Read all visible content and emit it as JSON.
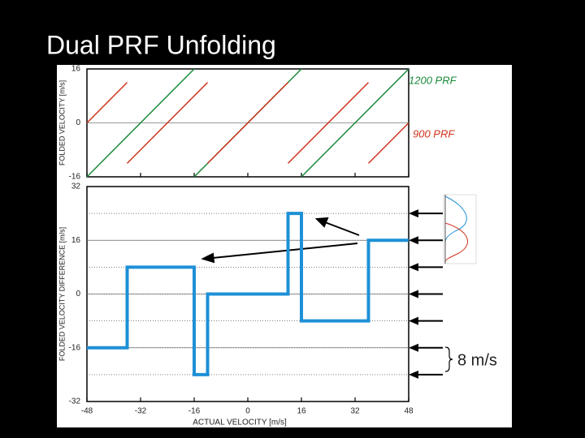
{
  "title": "Dual PRF Unfolding",
  "annotation": "8 m/s",
  "chart_data": [
    {
      "type": "line",
      "ylabel": "FOLDED VELOCITY [m/s]",
      "xlim": [
        -48,
        48
      ],
      "ylim": [
        -16,
        16
      ],
      "xticks": [
        -48,
        -32,
        -16,
        0,
        16,
        32,
        48
      ],
      "yticks": [
        -16,
        0,
        16
      ],
      "series": [
        {
          "name": "1200 PRF",
          "color": "#1a8a3a",
          "x": [
            -48,
            -16,
            -16,
            -16,
            16,
            16,
            16,
            48
          ],
          "values": [
            -16,
            16,
            null,
            -16,
            16,
            null,
            -16,
            16
          ]
        },
        {
          "name": "900 PRF",
          "color": "#d0341e",
          "x": [
            -48,
            -36,
            -36,
            -36,
            -12,
            -12,
            -12,
            12,
            12,
            12,
            36,
            36,
            36,
            48
          ],
          "values": [
            0,
            12,
            null,
            -12,
            12,
            null,
            -12,
            12,
            null,
            -12,
            12,
            null,
            -12,
            0
          ]
        }
      ]
    },
    {
      "type": "line",
      "ylabel": "FOLDED VELOCITY DIFFERENCE [m/s]",
      "xlabel": "ACTUAL VELOCITY [m/s]",
      "xlim": [
        -48,
        48
      ],
      "ylim": [
        -32,
        32
      ],
      "xticks": [
        -48,
        -32,
        -16,
        0,
        16,
        32,
        48
      ],
      "yticks": [
        -32,
        -16,
        0,
        16,
        32
      ],
      "reference_levels": [
        24,
        16,
        8,
        0,
        -8,
        -16,
        -24
      ],
      "series": [
        {
          "color": "#1e90d6",
          "x": [
            -48,
            -36,
            -36,
            -16,
            -16,
            -12,
            -12,
            12,
            12,
            16,
            16,
            36,
            36,
            48
          ],
          "values": [
            -16,
            -16,
            8,
            8,
            -24,
            -24,
            0,
            0,
            24,
            24,
            -8,
            -8,
            16,
            16
          ]
        }
      ]
    }
  ]
}
